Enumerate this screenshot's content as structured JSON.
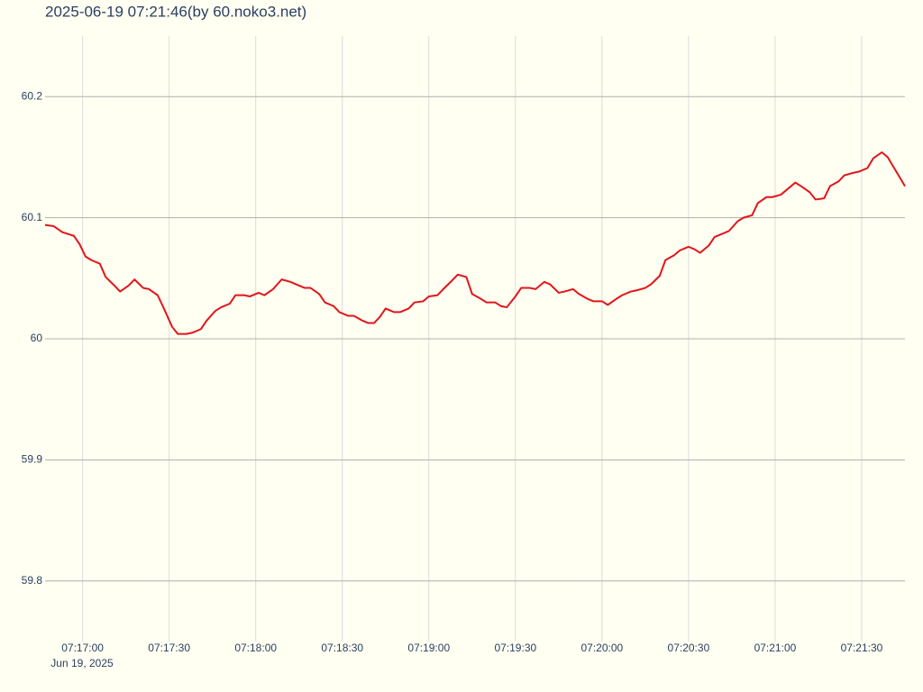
{
  "chart_data": {
    "type": "line",
    "title": "2025-06-19 07:21:46(by 60.noko3.net)",
    "x_date_label": "Jun 19, 2025",
    "x": [
      "2025-06-19 07:16:47",
      "2025-06-19 07:16:50",
      "2025-06-19 07:16:53",
      "2025-06-19 07:16:57",
      "2025-06-19 07:16:59",
      "2025-06-19 07:17:01",
      "2025-06-19 07:17:03",
      "2025-06-19 07:17:06",
      "2025-06-19 07:17:08",
      "2025-06-19 07:17:11",
      "2025-06-19 07:17:13",
      "2025-06-19 07:17:16",
      "2025-06-19 07:17:18",
      "2025-06-19 07:17:21",
      "2025-06-19 07:17:23",
      "2025-06-19 07:17:26",
      "2025-06-19 07:17:28",
      "2025-06-19 07:17:31",
      "2025-06-19 07:17:33",
      "2025-06-19 07:17:36",
      "2025-06-19 07:17:38",
      "2025-06-19 07:17:41",
      "2025-06-19 07:17:43",
      "2025-06-19 07:17:46",
      "2025-06-19 07:17:48",
      "2025-06-19 07:17:51",
      "2025-06-19 07:17:53",
      "2025-06-19 07:17:56",
      "2025-06-19 07:17:58",
      "2025-06-19 07:18:01",
      "2025-06-19 07:18:03",
      "2025-06-19 07:18:06",
      "2025-06-19 07:18:09",
      "2025-06-19 07:18:12",
      "2025-06-19 07:18:14",
      "2025-06-19 07:18:17",
      "2025-06-19 07:18:19",
      "2025-06-19 07:18:22",
      "2025-06-19 07:18:24",
      "2025-06-19 07:18:27",
      "2025-06-19 07:18:29",
      "2025-06-19 07:18:32",
      "2025-06-19 07:18:34",
      "2025-06-19 07:18:37",
      "2025-06-19 07:18:39",
      "2025-06-19 07:18:41",
      "2025-06-19 07:18:43",
      "2025-06-19 07:18:45",
      "2025-06-19 07:18:48",
      "2025-06-19 07:18:50",
      "2025-06-19 07:18:53",
      "2025-06-19 07:18:55",
      "2025-06-19 07:18:58",
      "2025-06-19 07:19:00",
      "2025-06-19 07:19:03",
      "2025-06-19 07:19:05",
      "2025-06-19 07:19:08",
      "2025-06-19 07:19:10",
      "2025-06-19 07:19:13",
      "2025-06-19 07:19:15",
      "2025-06-19 07:19:18",
      "2025-06-19 07:19:20",
      "2025-06-19 07:19:23",
      "2025-06-19 07:19:25",
      "2025-06-19 07:19:27",
      "2025-06-19 07:19:30",
      "2025-06-19 07:19:32",
      "2025-06-19 07:19:35",
      "2025-06-19 07:19:37",
      "2025-06-19 07:19:40",
      "2025-06-19 07:19:42",
      "2025-06-19 07:19:45",
      "2025-06-19 07:19:47",
      "2025-06-19 07:19:50",
      "2025-06-19 07:19:52",
      "2025-06-19 07:19:55",
      "2025-06-19 07:19:57",
      "2025-06-19 07:20:00",
      "2025-06-19 07:20:02",
      "2025-06-19 07:20:05",
      "2025-06-19 07:20:07",
      "2025-06-19 07:20:10",
      "2025-06-19 07:20:12",
      "2025-06-19 07:20:15",
      "2025-06-19 07:20:17",
      "2025-06-19 07:20:20",
      "2025-06-19 07:20:22",
      "2025-06-19 07:20:25",
      "2025-06-19 07:20:27",
      "2025-06-19 07:20:30",
      "2025-06-19 07:20:32",
      "2025-06-19 07:20:34",
      "2025-06-19 07:20:37",
      "2025-06-19 07:20:39",
      "2025-06-19 07:20:42",
      "2025-06-19 07:20:44",
      "2025-06-19 07:20:47",
      "2025-06-19 07:20:49",
      "2025-06-19 07:20:52",
      "2025-06-19 07:20:54",
      "2025-06-19 07:20:57",
      "2025-06-19 07:20:59",
      "2025-06-19 07:21:02",
      "2025-06-19 07:21:04",
      "2025-06-19 07:21:07",
      "2025-06-19 07:21:09",
      "2025-06-19 07:21:12",
      "2025-06-19 07:21:14",
      "2025-06-19 07:21:17",
      "2025-06-19 07:21:19",
      "2025-06-19 07:21:22",
      "2025-06-19 07:21:24",
      "2025-06-19 07:21:27",
      "2025-06-19 07:21:29",
      "2025-06-19 07:21:32",
      "2025-06-19 07:21:34",
      "2025-06-19 07:21:37",
      "2025-06-19 07:21:39",
      "2025-06-19 07:21:42",
      "2025-06-19 07:21:45"
    ],
    "values": [
      60.094,
      60.093,
      60.088,
      60.085,
      60.078,
      60.068,
      60.065,
      60.062,
      60.051,
      60.044,
      60.039,
      60.044,
      60.049,
      60.042,
      60.041,
      60.036,
      60.026,
      60.01,
      60.004,
      60.004,
      60.005,
      60.008,
      60.015,
      60.023,
      60.026,
      60.029,
      60.036,
      60.036,
      60.035,
      60.038,
      60.036,
      60.041,
      60.049,
      60.047,
      60.045,
      60.042,
      60.042,
      60.037,
      60.03,
      60.027,
      60.022,
      60.019,
      60.019,
      60.015,
      60.013,
      60.013,
      60.018,
      60.025,
      60.022,
      60.022,
      60.025,
      60.03,
      60.031,
      60.035,
      60.036,
      60.041,
      60.048,
      60.053,
      60.051,
      60.037,
      60.033,
      60.03,
      60.03,
      60.027,
      60.026,
      60.035,
      60.042,
      60.042,
      60.041,
      60.047,
      60.045,
      60.038,
      60.039,
      60.041,
      60.037,
      60.033,
      60.031,
      60.031,
      60.028,
      60.033,
      60.036,
      60.039,
      60.04,
      60.042,
      60.045,
      60.052,
      60.065,
      60.069,
      60.073,
      60.076,
      60.074,
      60.071,
      60.077,
      60.084,
      60.087,
      60.089,
      60.097,
      60.1,
      60.102,
      60.112,
      60.117,
      60.117,
      60.119,
      60.123,
      60.129,
      60.126,
      60.121,
      60.115,
      60.116,
      60.126,
      60.13,
      60.135,
      60.137,
      60.138,
      60.141,
      60.149,
      60.154,
      60.15,
      60.138,
      60.126
    ],
    "color": "#e0161b",
    "xlim": [
      "2025-06-19 07:16:47",
      "2025-06-19 07:21:45"
    ],
    "xticks": [
      {
        "value": "2025-06-19 07:17:00",
        "label": "07:17:00"
      },
      {
        "value": "2025-06-19 07:17:30",
        "label": "07:17:30"
      },
      {
        "value": "2025-06-19 07:18:00",
        "label": "07:18:00"
      },
      {
        "value": "2025-06-19 07:18:30",
        "label": "07:18:30"
      },
      {
        "value": "2025-06-19 07:19:00",
        "label": "07:19:00"
      },
      {
        "value": "2025-06-19 07:19:30",
        "label": "07:19:30"
      },
      {
        "value": "2025-06-19 07:20:00",
        "label": "07:20:00"
      },
      {
        "value": "2025-06-19 07:20:30",
        "label": "07:20:30"
      },
      {
        "value": "2025-06-19 07:21:00",
        "label": "07:21:00"
      },
      {
        "value": "2025-06-19 07:21:30",
        "label": "07:21:30"
      }
    ],
    "ylim": [
      59.75,
      60.25
    ],
    "yticks": [
      59.8,
      59.9,
      60,
      60.1,
      60.2
    ],
    "grid": true
  }
}
